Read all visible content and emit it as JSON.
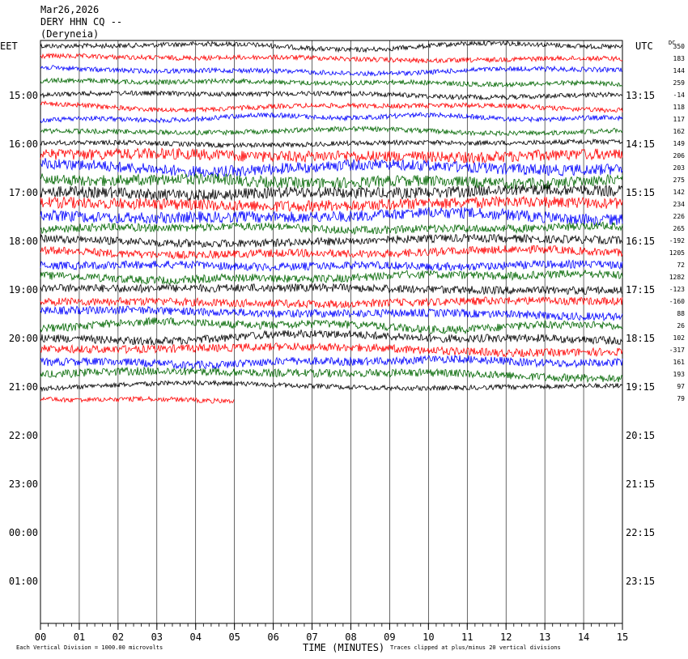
{
  "header": {
    "date": "Mar26,2026",
    "station": "DERY HHN CQ --",
    "location": "(Deryneia)"
  },
  "left_tz": "EET",
  "right_tz": "UTC",
  "dc_label": "DC",
  "footer": {
    "xlabel": "TIME (MINUTES)",
    "scale_note": "Each Vertical Division = 1000.00 microvolts",
    "clip_note": "Traces clipped at plus/minus 20 vertical divisions"
  },
  "colors": {
    "black": "#000000",
    "red": "#ff0000",
    "blue": "#0000ff",
    "green": "#006600"
  },
  "chart_data": {
    "type": "line",
    "title": "DERY HHN CQ -- (Deryneia) Mar26,2026",
    "xlabel": "TIME (MINUTES)",
    "x_ticks": [
      "00",
      "01",
      "02",
      "03",
      "04",
      "05",
      "06",
      "07",
      "08",
      "09",
      "10",
      "11",
      "12",
      "13",
      "14",
      "15"
    ],
    "xlim": [
      0,
      15
    ],
    "left_hour_labels": [
      "15:00",
      "16:00",
      "17:00",
      "18:00",
      "19:00",
      "20:00",
      "21:00",
      "22:00",
      "23:00",
      "00:00",
      "01:00"
    ],
    "right_hour_labels": [
      "13:15",
      "14:15",
      "15:15",
      "16:15",
      "17:15",
      "18:15",
      "19:15",
      "20:15",
      "21:15",
      "22:15",
      "23:15"
    ],
    "trace_color_cycle": [
      "black",
      "red",
      "blue",
      "green"
    ],
    "trace_dc_offsets": [
      350,
      183,
      144,
      259,
      -14,
      118,
      117,
      162,
      149,
      206,
      203,
      275,
      142,
      234,
      226,
      265,
      -192,
      1205,
      72,
      1282,
      -123,
      -160,
      88,
      26,
      102,
      -317,
      161,
      193,
      97,
      79
    ],
    "last_trace_minutes": 5.0,
    "grid": "vertical lines at each minute"
  }
}
